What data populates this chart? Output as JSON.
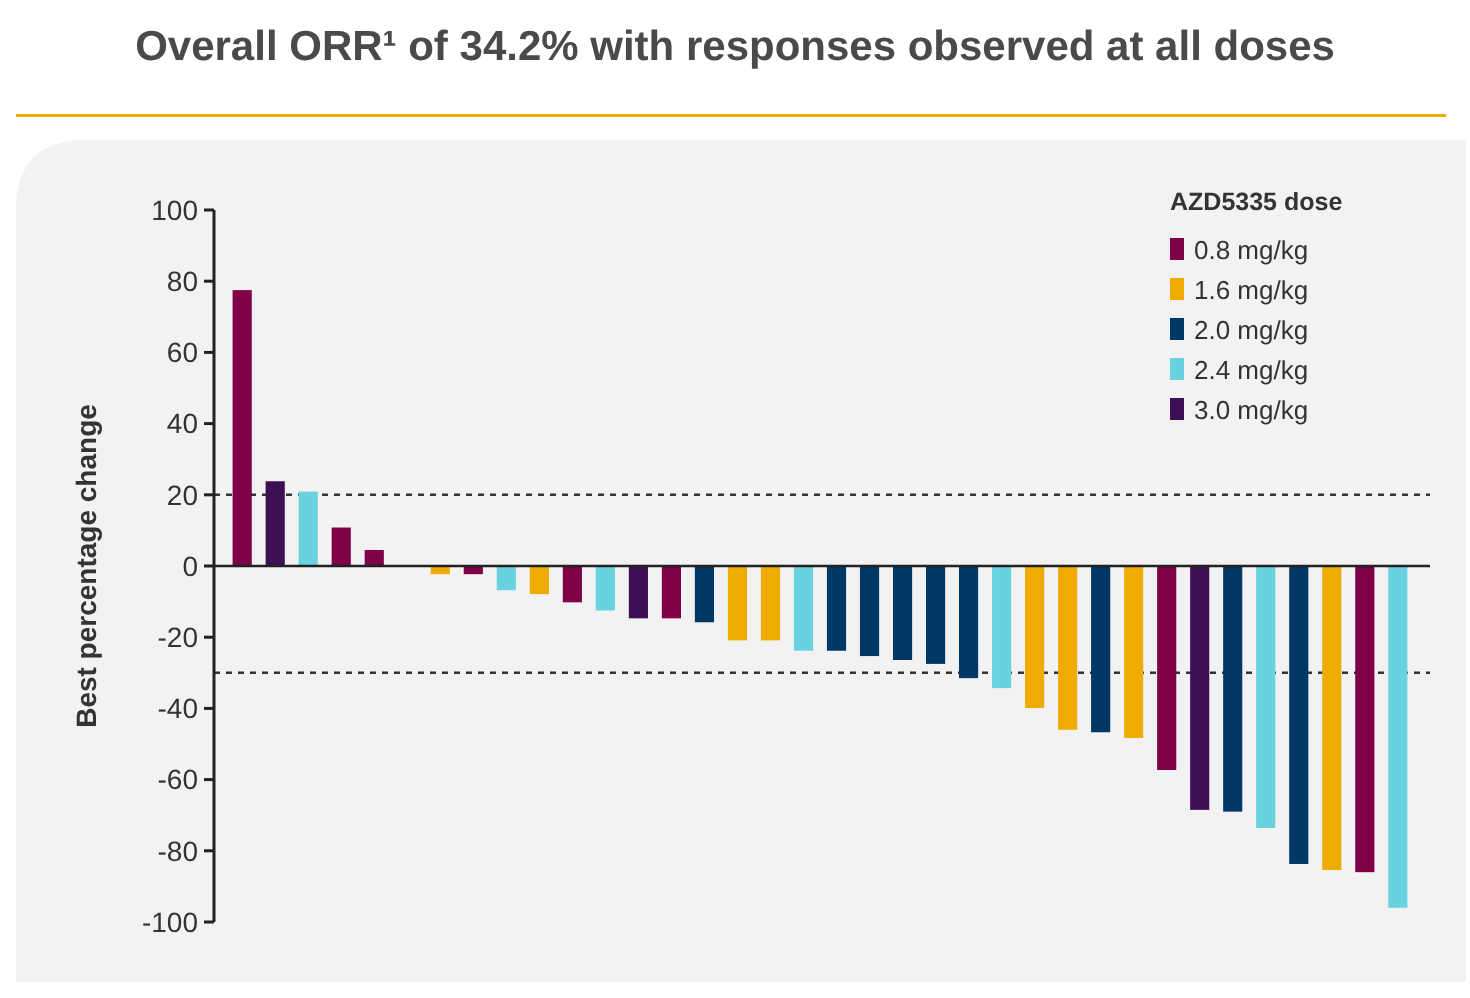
{
  "chart_data": {
    "type": "bar",
    "title": "Overall ORR¹ of 34.2% with responses observed at all doses",
    "ylabel": "Best percentage change",
    "legend_title": "AZD5335 dose",
    "categories": [
      null,
      null,
      null,
      null,
      null,
      null,
      null,
      null,
      null,
      null,
      null,
      null,
      null,
      null,
      null,
      null,
      null,
      null,
      null,
      null,
      null,
      null,
      null,
      null,
      null,
      null,
      null,
      null,
      null,
      null,
      null,
      null,
      null,
      null,
      null,
      null
    ],
    "series": [
      {
        "name": "0.8 mg/kg",
        "color": "#7f0046",
        "values": [
          77.5,
          null,
          null,
          10.8,
          4.5,
          null,
          null,
          -2.3,
          null,
          null,
          -10.2,
          null,
          null,
          -14.7,
          null,
          null,
          null,
          null,
          null,
          null,
          null,
          null,
          null,
          null,
          null,
          null,
          null,
          null,
          -57.3,
          null,
          null,
          null,
          null,
          null,
          -86,
          null
        ]
      },
      {
        "name": "1.6 mg/kg",
        "color": "#f0ab00",
        "values": [
          null,
          null,
          null,
          null,
          null,
          null,
          -2.3,
          null,
          null,
          -7.9,
          null,
          null,
          null,
          null,
          null,
          -20.9,
          -20.9,
          null,
          null,
          null,
          null,
          null,
          null,
          null,
          -39.9,
          -46,
          null,
          -48.3,
          null,
          null,
          null,
          null,
          null,
          -85.4,
          null,
          null
        ]
      },
      {
        "name": "2.0 mg/kg",
        "color": "#003865",
        "values": [
          null,
          null,
          null,
          null,
          null,
          null,
          null,
          null,
          null,
          null,
          null,
          null,
          null,
          null,
          -15.8,
          null,
          null,
          null,
          -23.8,
          -25.3,
          -26.4,
          -27.5,
          -31.5,
          null,
          null,
          null,
          -46.7,
          null,
          null,
          null,
          -69,
          null,
          -83.7,
          null,
          null,
          null
        ]
      },
      {
        "name": "2.4 mg/kg",
        "color": "#68d2df",
        "values": [
          null,
          null,
          20.9,
          null,
          null,
          null,
          null,
          null,
          -6.8,
          null,
          null,
          -12.5,
          null,
          null,
          null,
          null,
          null,
          -23.8,
          null,
          null,
          null,
          null,
          null,
          -34.3,
          null,
          null,
          null,
          null,
          null,
          null,
          null,
          -73.6,
          null,
          null,
          null,
          -96
        ]
      },
      {
        "name": "3.0 mg/kg",
        "color": "#3c1053",
        "values": [
          null,
          23.8,
          null,
          null,
          null,
          null,
          null,
          null,
          null,
          null,
          null,
          null,
          -14.7,
          null,
          null,
          null,
          null,
          null,
          null,
          null,
          null,
          null,
          null,
          null,
          null,
          null,
          null,
          null,
          null,
          -68.5,
          null,
          null,
          null,
          null,
          null,
          null
        ]
      }
    ],
    "ylim": [
      -100,
      100
    ],
    "yticks": [
      -100,
      -80,
      -60,
      -40,
      -20,
      0,
      20,
      40,
      60,
      80,
      100
    ],
    "ref_lines": [
      {
        "axis": "y",
        "value": 20,
        "line_style": "dashed"
      },
      {
        "axis": "y",
        "value": -30,
        "line_style": "dashed"
      }
    ],
    "grid": false,
    "legend": "top right"
  }
}
